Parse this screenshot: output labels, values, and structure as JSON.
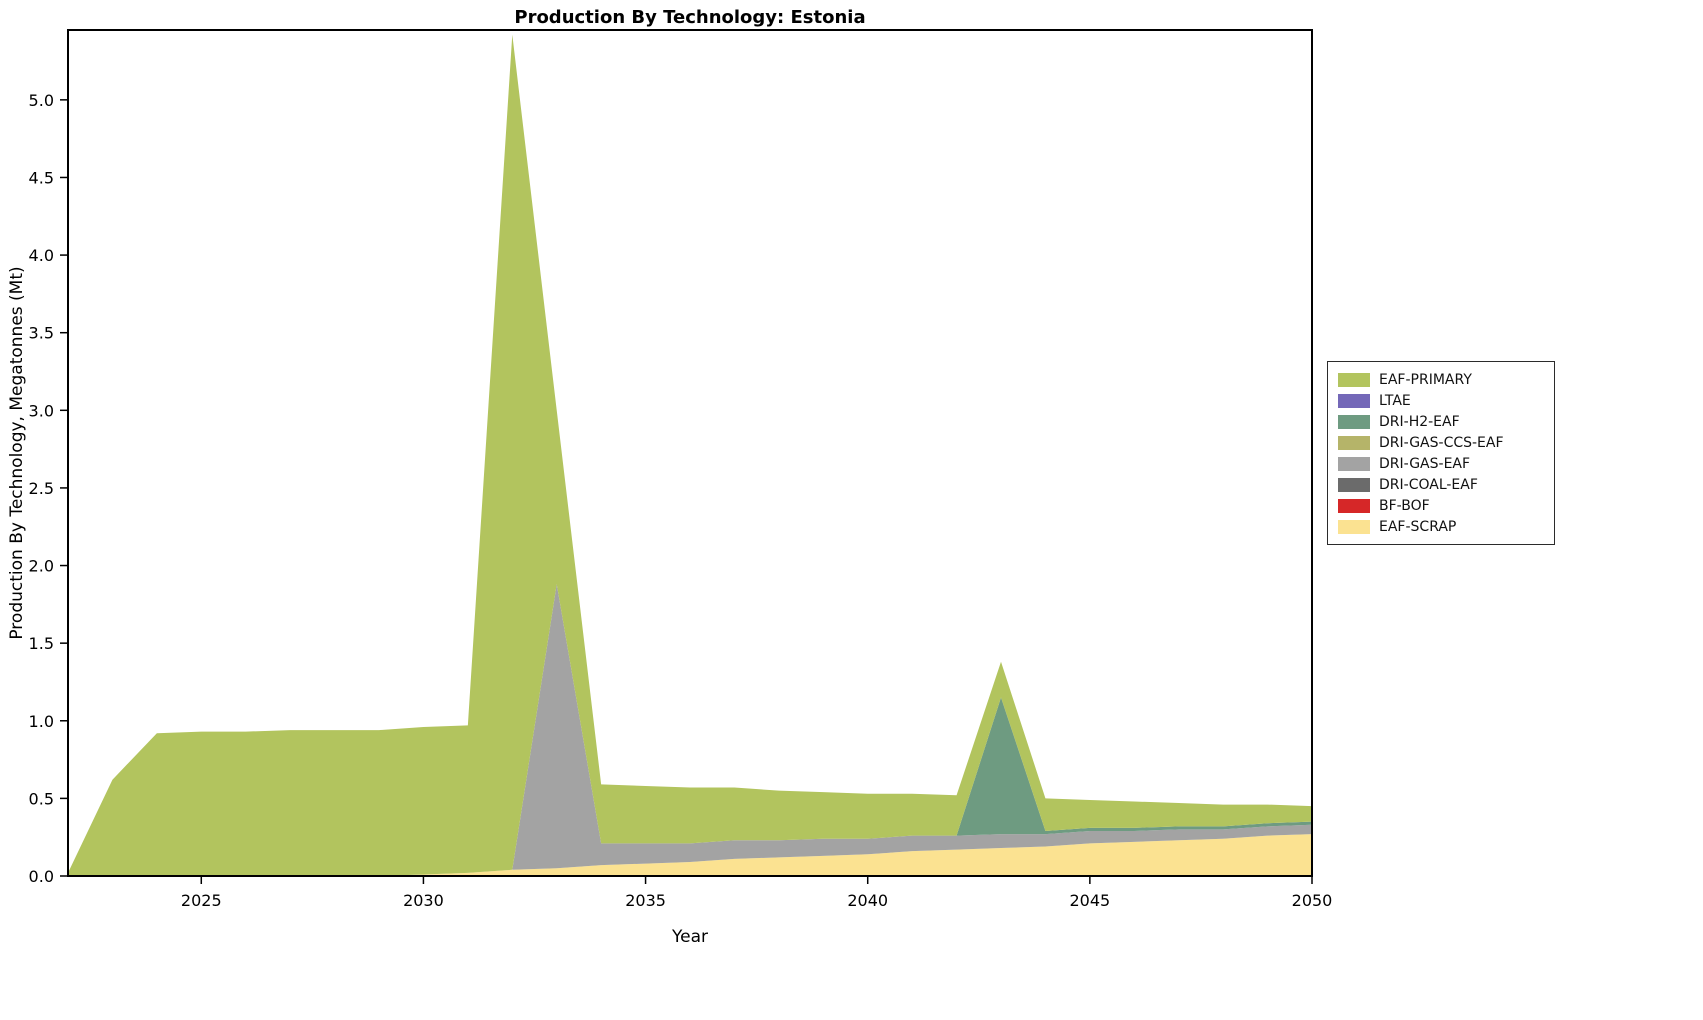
{
  "chart_data": {
    "type": "area",
    "stacked": true,
    "title": "Production By Technology: Estonia",
    "xlabel": "Year",
    "ylabel": "Production By Technology, Megatonnes (Mt)",
    "xlim": [
      2022,
      2050
    ],
    "ylim": [
      0,
      5.45
    ],
    "xticks": [
      2025,
      2030,
      2035,
      2040,
      2045,
      2050
    ],
    "yticks": [
      0,
      0.5,
      1,
      1.5,
      2,
      2.5,
      3,
      3.5,
      4,
      4.5,
      5
    ],
    "grid": false,
    "legend_position": "right-outside",
    "x": [
      2022,
      2023,
      2024,
      2025,
      2026,
      2027,
      2028,
      2029,
      2030,
      2031,
      2032,
      2033,
      2034,
      2035,
      2036,
      2037,
      2038,
      2039,
      2040,
      2041,
      2042,
      2043,
      2044,
      2045,
      2046,
      2047,
      2048,
      2049,
      2050
    ],
    "series": [
      {
        "name": "EAF-SCRAP",
        "color": "#fbe291",
        "values": [
          0,
          0,
          0,
          0,
          0,
          0,
          0,
          0,
          0.01,
          0.02,
          0.04,
          0.05,
          0.07,
          0.08,
          0.09,
          0.11,
          0.12,
          0.13,
          0.14,
          0.16,
          0.17,
          0.18,
          0.19,
          0.21,
          0.22,
          0.23,
          0.24,
          0.26,
          0.27
        ]
      },
      {
        "name": "BF-BOF",
        "color": "#d62728",
        "values": [
          0,
          0,
          0,
          0,
          0,
          0,
          0,
          0,
          0,
          0,
          0,
          0,
          0,
          0,
          0,
          0,
          0,
          0,
          0,
          0,
          0,
          0,
          0,
          0,
          0,
          0,
          0,
          0,
          0
        ]
      },
      {
        "name": "DRI-COAL-EAF",
        "color": "#6b6b6b",
        "values": [
          0,
          0,
          0,
          0,
          0,
          0,
          0,
          0,
          0,
          0,
          0,
          0,
          0,
          0,
          0,
          0,
          0,
          0,
          0,
          0,
          0,
          0,
          0,
          0,
          0,
          0,
          0,
          0,
          0
        ]
      },
      {
        "name": "DRI-GAS-EAF",
        "color": "#a3a3a3",
        "values": [
          0,
          0,
          0,
          0,
          0,
          0,
          0,
          0,
          0,
          0,
          0,
          1.83,
          0.14,
          0.13,
          0.12,
          0.12,
          0.11,
          0.11,
          0.1,
          0.1,
          0.09,
          0.09,
          0.08,
          0.08,
          0.07,
          0.07,
          0.06,
          0.06,
          0.06
        ]
      },
      {
        "name": "DRI-GAS-CCS-EAF",
        "color": "#b5b469",
        "values": [
          0,
          0,
          0,
          0,
          0,
          0,
          0,
          0,
          0,
          0,
          0,
          0,
          0,
          0,
          0,
          0,
          0,
          0,
          0,
          0,
          0,
          0,
          0,
          0,
          0,
          0,
          0,
          0,
          0
        ]
      },
      {
        "name": "DRI-H2-EAF",
        "color": "#6e9b81",
        "values": [
          0,
          0,
          0,
          0,
          0,
          0,
          0,
          0,
          0,
          0,
          0,
          0,
          0,
          0,
          0,
          0,
          0,
          0,
          0,
          0,
          0,
          0.88,
          0.02,
          0.02,
          0.02,
          0.02,
          0.02,
          0.02,
          0.02
        ]
      },
      {
        "name": "LTAE",
        "color": "#7468b8",
        "values": [
          0,
          0,
          0,
          0,
          0,
          0,
          0,
          0,
          0,
          0,
          0,
          0,
          0,
          0,
          0,
          0,
          0,
          0,
          0,
          0,
          0,
          0,
          0,
          0,
          0,
          0,
          0,
          0,
          0
        ]
      },
      {
        "name": "EAF-PRIMARY",
        "color": "#b2c45e",
        "values": [
          0.02,
          0.62,
          0.92,
          0.93,
          0.93,
          0.94,
          0.94,
          0.94,
          0.95,
          0.95,
          5.38,
          1.12,
          0.38,
          0.37,
          0.36,
          0.34,
          0.32,
          0.3,
          0.29,
          0.27,
          0.26,
          0.23,
          0.21,
          0.18,
          0.17,
          0.15,
          0.14,
          0.12,
          0.1
        ]
      }
    ],
    "legend_order": [
      "EAF-PRIMARY",
      "LTAE",
      "DRI-H2-EAF",
      "DRI-GAS-CCS-EAF",
      "DRI-GAS-EAF",
      "DRI-COAL-EAF",
      "BF-BOF",
      "EAF-SCRAP"
    ]
  },
  "style_colors": {
    "axis": "#000000",
    "background": "#ffffff"
  }
}
